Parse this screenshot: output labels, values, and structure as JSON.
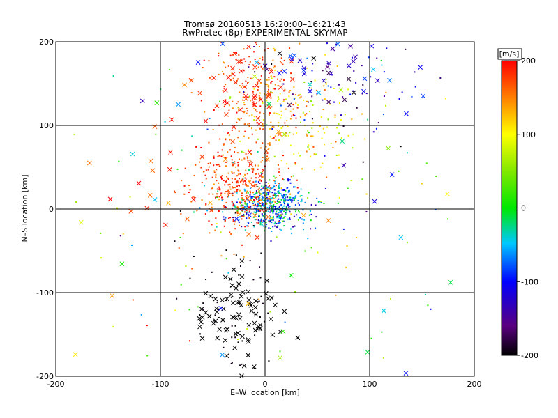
{
  "chart_data": {
    "type": "scatter",
    "title": "Tromsø 20160513 16:20:00–16:21:43",
    "subtitle": "RwPretec (8p) EXPERIMENTAL SKYMAP",
    "xlabel": "E–W location [km]",
    "ylabel": "N–S location [km]",
    "xlim": [
      -200,
      200
    ],
    "ylim": [
      -200,
      200
    ],
    "x_ticks": [
      -200,
      -100,
      0,
      100,
      200
    ],
    "y_ticks": [
      -200,
      -100,
      0,
      100,
      200
    ],
    "grid": true,
    "colorbar": {
      "label": "[m/s]",
      "range": [
        -200,
        200
      ],
      "ticks": [
        200,
        100,
        0,
        -100,
        -200
      ],
      "colormap": "rainbow (black-purple-blue-cyan-green-yellow-red)"
    },
    "marker_types": [
      "small dot",
      "cross"
    ],
    "clusters": [
      {
        "marker": "dot",
        "center": [
          5,
          5
        ],
        "spread": [
          18,
          14
        ],
        "count": 520,
        "value": -60,
        "value_spread": 90
      },
      {
        "marker": "dot",
        "center": [
          -25,
          30
        ],
        "spread": [
          22,
          25
        ],
        "count": 360,
        "value": 175,
        "value_spread": 40
      },
      {
        "marker": "dot",
        "center": [
          -12,
          140
        ],
        "spread": [
          22,
          35
        ],
        "count": 230,
        "value": 170,
        "value_spread": 45
      },
      {
        "marker": "dot",
        "center": [
          30,
          110
        ],
        "spread": [
          30,
          35
        ],
        "count": 180,
        "value": 110,
        "value_spread": 60
      },
      {
        "marker": "dot",
        "center": [
          80,
          150
        ],
        "spread": [
          45,
          35
        ],
        "count": 70,
        "value": -120,
        "value_spread": 80
      },
      {
        "marker": "dot",
        "center": [
          -30,
          -120
        ],
        "spread": [
          25,
          45
        ],
        "count": 60,
        "value": -195,
        "value_spread": 10
      },
      {
        "marker": "dot",
        "center": [
          0,
          0
        ],
        "spread": [
          140,
          140
        ],
        "count": 140,
        "value": 40,
        "value_spread": 170
      },
      {
        "marker": "cross",
        "center": [
          -25,
          -125
        ],
        "spread": [
          18,
          28
        ],
        "count": 80,
        "value": -200,
        "value_spread": 0
      },
      {
        "marker": "cross",
        "center": [
          -15,
          150
        ],
        "spread": [
          25,
          35
        ],
        "count": 45,
        "value": 185,
        "value_spread": 20
      },
      {
        "marker": "cross",
        "center": [
          -60,
          30
        ],
        "spread": [
          50,
          40
        ],
        "count": 35,
        "value": 170,
        "value_spread": 40
      },
      {
        "marker": "cross",
        "center": [
          70,
          165
        ],
        "spread": [
          40,
          25
        ],
        "count": 45,
        "value": -110,
        "value_spread": 90
      },
      {
        "marker": "cross",
        "center": [
          0,
          0
        ],
        "spread": [
          130,
          130
        ],
        "count": 40,
        "value": 0,
        "value_spread": 200
      }
    ],
    "points_note": "points are dense; clusters summarize the plotted data (x,y in km, value in m/s)"
  }
}
